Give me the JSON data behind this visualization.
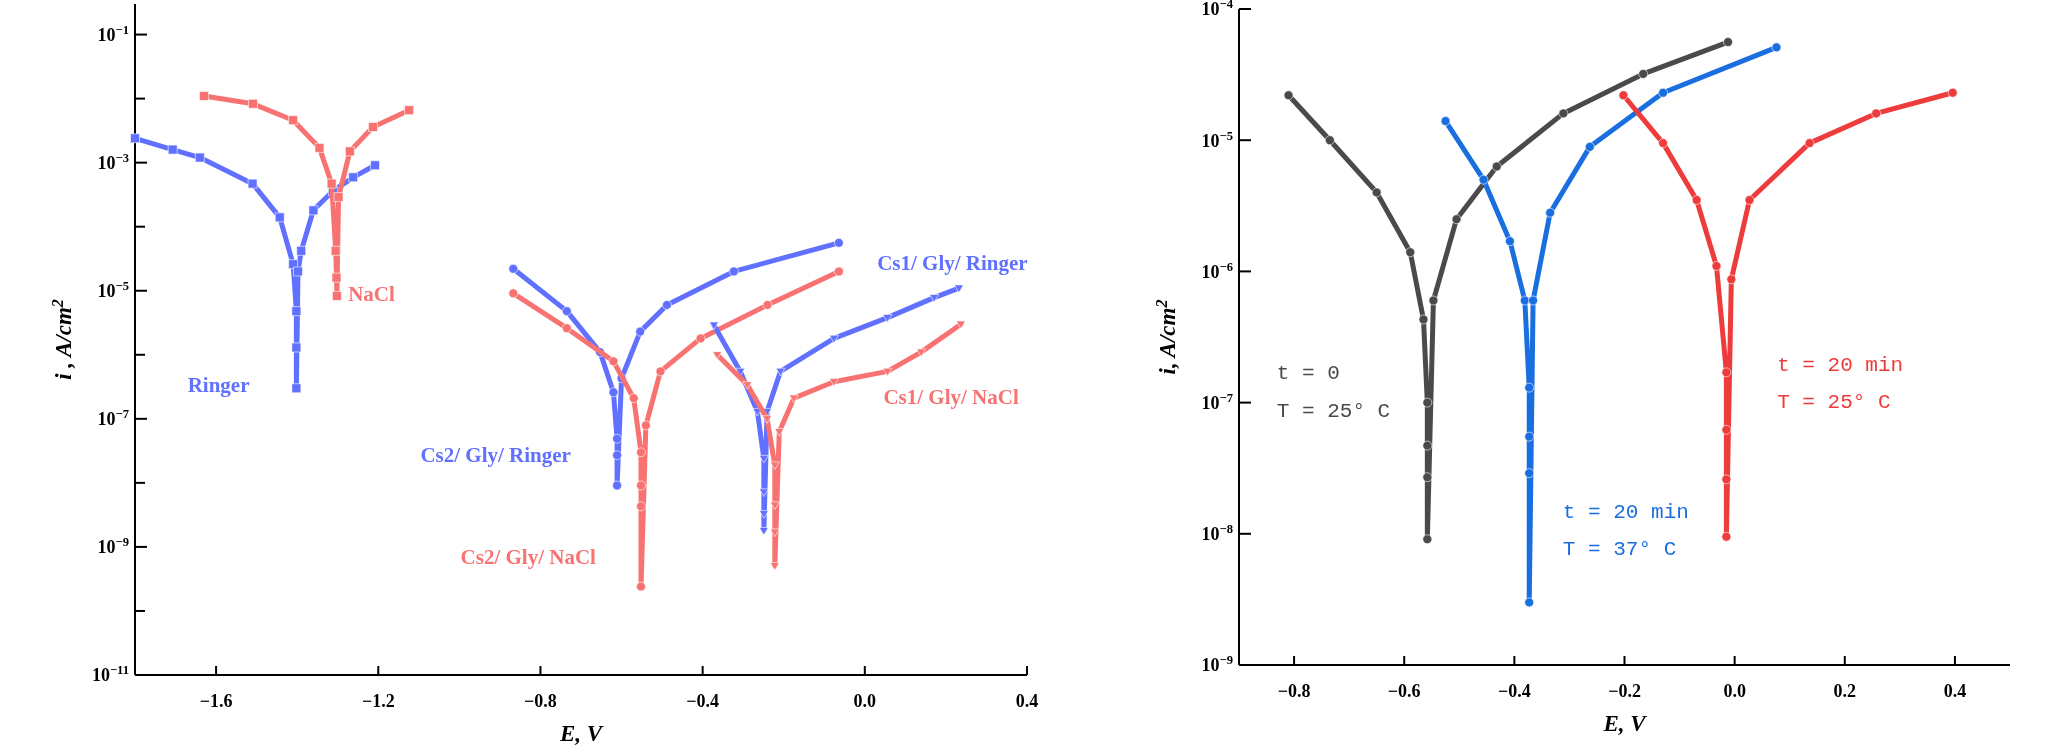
{
  "chart_data": [
    {
      "type": "line",
      "xlabel": "E, V",
      "ylabel": "i , A/cm$^{2}$",
      "log": "y",
      "xlim": [
        -1.8,
        0.4
      ],
      "ylim": [
        1e-11,
        0.3
      ],
      "xticks": [
        {
          "value": -1.6,
          "label": "−1.6"
        },
        {
          "value": -1.2,
          "label": "−1.2"
        },
        {
          "value": -0.8,
          "label": "−0.8"
        },
        {
          "value": -0.4,
          "label": "−0.4"
        },
        {
          "value": 0,
          "label": "0.0"
        },
        {
          "value": 0.4,
          "label": "0.4"
        }
      ],
      "yticks": [
        {
          "value": 0.1,
          "label": "10$^{−1}$"
        },
        {
          "value": 0.01,
          "label": null
        },
        {
          "value": 0.001,
          "label": "10$^{−3}$"
        },
        {
          "value": 0.0001,
          "label": null
        },
        {
          "value": 1e-05,
          "label": "10$^{−5}$"
        },
        {
          "value": 1e-06,
          "label": null
        },
        {
          "value": 1e-07,
          "label": "10$^{−7}$"
        },
        {
          "value": 1e-08,
          "label": null
        },
        {
          "value": 1e-09,
          "label": "10$^{−9}$"
        },
        {
          "value": 1e-10,
          "label": null
        },
        {
          "value": 1e-11,
          "label": "10$^{−11}$"
        }
      ],
      "series": [
        {
          "name": "Ringer",
          "color": "#6070ff",
          "marker": "square",
          "x": [
            -1.8,
            -1.707,
            -1.64,
            -1.51,
            -1.443,
            -1.41,
            -1.402,
            -1.402,
            -1.402,
            -1.398,
            -1.39,
            -1.36,
            -1.312,
            -1.262,
            -1.208
          ],
          "values": [
            0.0024,
            0.0016,
            0.0012,
            0.00047,
            0.00014,
            2.6e-05,
            4.8e-06,
            1.3e-06,
            3e-07,
            2e-05,
            4.2e-05,
            0.00018,
            0.00036,
            0.00059,
            0.00091
          ]
        },
        {
          "name": "NaCl",
          "color": "#f87272",
          "marker": "square",
          "x": [
            -1.63,
            -1.509,
            -1.41,
            -1.345,
            -1.315,
            -1.305,
            -1.303,
            -1.302,
            -1.298,
            -1.27,
            -1.213,
            -1.124
          ],
          "values": [
            0.011,
            0.0083,
            0.0046,
            0.0017,
            0.00047,
            4.2e-05,
            1.6e-05,
            8.3e-06,
            0.00029,
            0.0015,
            0.0036,
            0.0066
          ]
        },
        {
          "name": "Cs2/ Gly/ Ringer",
          "color": "#6070ff",
          "marker": "circle",
          "x": [
            -0.867,
            -0.735,
            -0.653,
            -0.62,
            -0.611,
            -0.611,
            -0.611,
            -0.6,
            -0.554,
            -0.488,
            -0.323,
            -0.064
          ],
          "values": [
            2.2e-05,
            4.8e-06,
            1.1e-06,
            2.6e-07,
            4.9e-08,
            2.7e-08,
            9.1e-09,
            4.3e-07,
            2.3e-06,
            6e-06,
            2e-05,
            5.6e-05
          ]
        },
        {
          "name": "Cs2/ Gly/ NaCl",
          "color": "#f87272",
          "marker": "circle",
          "x": [
            -0.867,
            -0.735,
            -0.62,
            -0.57,
            -0.552,
            -0.552,
            -0.552,
            -0.552,
            -0.54,
            -0.504,
            -0.405,
            -0.24,
            -0.064
          ],
          "values": [
            9.1e-06,
            2.6e-06,
            7.9e-07,
            2.1e-07,
            3e-08,
            9.1e-09,
            4.3e-09,
            2.4e-10,
            7.9e-08,
            5.5e-07,
            1.8e-06,
            6e-06,
            2e-05
          ]
        },
        {
          "name": "Cs1/ Gly/ Ringer",
          "color": "#6070ff",
          "marker": "triangle",
          "x": [
            -0.372,
            -0.307,
            -0.265,
            -0.249,
            -0.249,
            -0.249,
            -0.249,
            -0.241,
            -0.208,
            -0.076,
            0.056,
            0.171,
            0.232
          ],
          "values": [
            2.9e-06,
            5.5e-07,
            1.3e-07,
            2.4e-08,
            7.2e-09,
            3.3e-09,
            1.8e-09,
            1.3e-07,
            5.5e-07,
            1.8e-06,
            3.8e-06,
            7.8e-06,
            1.1e-05
          ]
        },
        {
          "name": "Cs1/ Gly/ NaCl",
          "color": "#f87272",
          "marker": "triangle",
          "x": [
            -0.364,
            -0.29,
            -0.241,
            -0.222,
            -0.222,
            -0.222,
            -0.222,
            -0.211,
            -0.175,
            -0.076,
            0.056,
            0.139,
            0.237
          ],
          "values": [
            1e-06,
            3.4e-07,
            1e-07,
            1.9e-08,
            4.5e-09,
            1.7e-09,
            5.1e-10,
            6.3e-08,
            2.1e-07,
            3.8e-07,
            5.5e-07,
            1.1e-06,
            3e-06
          ]
        }
      ]
    },
    {
      "type": "line",
      "xlabel": "E, V",
      "ylabel": "i, A/cm$^{2}$",
      "log": "y",
      "xlim": [
        -0.9,
        0.5
      ],
      "ylim": [
        1e-09,
        0.0001
      ],
      "marker": "circle",
      "xticks": [
        {
          "value": -0.8,
          "label": "−0.8"
        },
        {
          "value": -0.6,
          "label": "−0.6"
        },
        {
          "value": -0.4,
          "label": "−0.4"
        },
        {
          "value": -0.2,
          "label": "−0.2"
        },
        {
          "value": 0,
          "label": "0.0"
        },
        {
          "value": 0.2,
          "label": "0.2"
        },
        {
          "value": 0.4,
          "label": "0.4"
        }
      ],
      "yticks": [
        {
          "value": 0.0001,
          "label": "10$^{−4}$"
        },
        {
          "value": 1e-05,
          "label": "10$^{−5}$"
        },
        {
          "value": 1e-06,
          "label": "10$^{−6}$"
        },
        {
          "value": 1e-07,
          "label": "10$^{−7}$"
        },
        {
          "value": 1e-08,
          "label": "10$^{−8}$"
        },
        {
          "value": 1e-09,
          "label": "10$^{−9}$"
        }
      ],
      "series": [
        {
          "name": "t = 0\nT = 25° C",
          "color": "#4a4a4a",
          "x": [
            -0.81,
            -0.735,
            -0.65,
            -0.589,
            -0.565,
            -0.558,
            -0.558,
            -0.558,
            -0.558,
            -0.547,
            -0.505,
            -0.432,
            -0.311,
            -0.166,
            -0.012
          ],
          "values": [
            2.2e-05,
            1e-05,
            4e-06,
            1.4e-06,
            4.3e-07,
            1e-07,
            4.7e-08,
            2.7e-08,
            9.1e-09,
            6e-07,
            2.5e-06,
            6.3e-06,
            1.6e-05,
            3.2e-05,
            5.6e-05
          ]
        },
        {
          "name": "t = 20 min\nT = 37° C",
          "color": "#1a6fe0",
          "x": [
            -0.525,
            -0.456,
            -0.408,
            -0.381,
            -0.373,
            -0.373,
            -0.373,
            -0.373,
            -0.366,
            -0.335,
            -0.263,
            -0.13,
            0.076
          ],
          "values": [
            1.4e-05,
            5e-06,
            1.7e-06,
            6e-07,
            1.3e-07,
            5.5e-08,
            2.9e-08,
            3e-09,
            6e-07,
            2.8e-06,
            8.9e-06,
            2.3e-05,
            5.1e-05
          ]
        },
        {
          "name": "t = 20 min\nT = 25° C",
          "color": "#ee3b3b",
          "x": [
            -0.202,
            -0.13,
            -0.069,
            -0.033,
            -0.015,
            -0.015,
            -0.015,
            -0.015,
            -0.006,
            0.027,
            0.136,
            0.257,
            0.396
          ],
          "values": [
            2.2e-05,
            9.5e-06,
            3.5e-06,
            1.1e-06,
            1.7e-07,
            6.2e-08,
            2.6e-08,
            9.5e-09,
            8.7e-07,
            3.5e-06,
            9.5e-06,
            1.6e-05,
            2.3e-05
          ]
        }
      ]
    }
  ]
}
